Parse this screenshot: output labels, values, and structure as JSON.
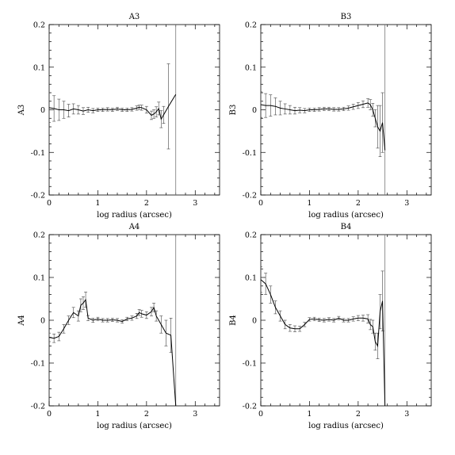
{
  "chart_data": [
    {
      "type": "line",
      "title": "A3",
      "xlabel": "log radius (arcsec)",
      "ylabel": "A3",
      "xlim": [
        0,
        3.5
      ],
      "ylim": [
        -0.2,
        0.2
      ],
      "xticks": [
        "0",
        "1",
        "2",
        "3"
      ],
      "yticks": [
        "-0.2",
        "-0.1",
        "0",
        "0.1",
        "0.2"
      ],
      "vline_x": 2.6,
      "x": [
        0.0,
        0.1,
        0.2,
        0.3,
        0.4,
        0.5,
        0.6,
        0.7,
        0.8,
        0.9,
        1.0,
        1.1,
        1.2,
        1.3,
        1.4,
        1.5,
        1.6,
        1.7,
        1.8,
        1.85,
        1.9,
        2.0,
        2.1,
        2.15,
        2.2,
        2.25,
        2.3,
        2.35,
        2.45,
        2.6
      ],
      "y": [
        0.005,
        0.003,
        0.0,
        0.0,
        -0.002,
        0.002,
        0.0,
        -0.003,
        0.0,
        -0.002,
        0.0,
        0.0,
        0.001,
        0.0,
        0.002,
        0.0,
        0.0,
        0.001,
        0.004,
        0.006,
        0.005,
        0.0,
        -0.013,
        -0.01,
        -0.005,
        0.003,
        -0.022,
        -0.012,
        0.008,
        0.036
      ],
      "err": [
        0.035,
        0.03,
        0.025,
        0.02,
        0.015,
        0.012,
        0.01,
        0.008,
        0.006,
        0.005,
        0.004,
        0.004,
        0.004,
        0.004,
        0.004,
        0.004,
        0.004,
        0.004,
        0.005,
        0.005,
        0.006,
        0.008,
        0.01,
        0.01,
        0.012,
        0.015,
        0.02,
        0.02,
        0.1,
        0.0
      ]
    },
    {
      "type": "line",
      "title": "B3",
      "xlabel": "log radius (arcsec)",
      "ylabel": "B3",
      "xlim": [
        0,
        3.5
      ],
      "ylim": [
        -0.2,
        0.2
      ],
      "xticks": [
        "0",
        "1",
        "2",
        "3"
      ],
      "yticks": [
        "-0.2",
        "-0.1",
        "0",
        "0.1",
        "0.2"
      ],
      "vline_x": 2.55,
      "x": [
        0.0,
        0.1,
        0.2,
        0.3,
        0.4,
        0.5,
        0.6,
        0.7,
        0.8,
        0.9,
        1.0,
        1.1,
        1.2,
        1.3,
        1.4,
        1.5,
        1.6,
        1.7,
        1.8,
        1.9,
        2.0,
        2.1,
        2.2,
        2.25,
        2.3,
        2.35,
        2.4,
        2.45,
        2.5,
        2.55
      ],
      "y": [
        0.012,
        0.01,
        0.01,
        0.008,
        0.004,
        0.002,
        0.0,
        -0.002,
        -0.001,
        -0.002,
        0.0,
        0.0,
        0.001,
        0.002,
        0.002,
        0.001,
        0.001,
        0.002,
        0.004,
        0.007,
        0.01,
        0.013,
        0.016,
        0.012,
        0.0,
        -0.02,
        -0.04,
        -0.05,
        -0.03,
        -0.095
      ],
      "err": [
        0.03,
        0.028,
        0.025,
        0.02,
        0.016,
        0.012,
        0.01,
        0.008,
        0.006,
        0.005,
        0.004,
        0.004,
        0.004,
        0.004,
        0.004,
        0.004,
        0.004,
        0.004,
        0.005,
        0.006,
        0.007,
        0.008,
        0.01,
        0.012,
        0.015,
        0.02,
        0.05,
        0.06,
        0.07,
        0.0
      ]
    },
    {
      "type": "line",
      "title": "A4",
      "xlabel": "log radius (arcsec)",
      "ylabel": "A4",
      "xlim": [
        0,
        3.5
      ],
      "ylim": [
        -0.2,
        0.2
      ],
      "xticks": [
        "0",
        "1",
        "2",
        "3"
      ],
      "yticks": [
        "-0.2",
        "-0.1",
        "0",
        "0.1",
        "0.2"
      ],
      "vline_x": 2.6,
      "x": [
        0.0,
        0.1,
        0.2,
        0.3,
        0.4,
        0.5,
        0.6,
        0.65,
        0.7,
        0.75,
        0.8,
        0.9,
        1.0,
        1.1,
        1.2,
        1.3,
        1.4,
        1.5,
        1.6,
        1.7,
        1.8,
        1.85,
        1.9,
        2.0,
        2.1,
        2.15,
        2.2,
        2.3,
        2.4,
        2.5,
        2.6
      ],
      "y": [
        -0.04,
        -0.042,
        -0.038,
        -0.02,
        0.0,
        0.018,
        0.01,
        0.035,
        0.04,
        0.048,
        0.005,
        0.0,
        0.003,
        0.0,
        0.0,
        0.001,
        0.0,
        -0.003,
        0.003,
        0.005,
        0.01,
        0.018,
        0.015,
        0.012,
        0.02,
        0.03,
        0.01,
        -0.01,
        -0.03,
        -0.035,
        -0.2
      ],
      "err": [
        0.01,
        0.01,
        0.01,
        0.01,
        0.01,
        0.012,
        0.012,
        0.015,
        0.015,
        0.018,
        0.006,
        0.005,
        0.004,
        0.004,
        0.004,
        0.004,
        0.004,
        0.004,
        0.004,
        0.005,
        0.006,
        0.007,
        0.008,
        0.008,
        0.01,
        0.01,
        0.012,
        0.02,
        0.03,
        0.04,
        0.0
      ]
    },
    {
      "type": "line",
      "title": "B4",
      "xlabel": "log radius (arcsec)",
      "ylabel": "B4",
      "xlim": [
        0,
        3.5
      ],
      "ylim": [
        -0.2,
        0.2
      ],
      "xticks": [
        "0",
        "1",
        "2",
        "3"
      ],
      "yticks": [
        "-0.2",
        "-0.1",
        "0",
        "0.1",
        "0.2"
      ],
      "vline_x": 2.55,
      "x": [
        0.0,
        0.1,
        0.2,
        0.3,
        0.4,
        0.5,
        0.6,
        0.7,
        0.8,
        0.9,
        1.0,
        1.1,
        1.2,
        1.3,
        1.4,
        1.5,
        1.6,
        1.7,
        1.8,
        1.9,
        2.0,
        2.1,
        2.2,
        2.25,
        2.3,
        2.35,
        2.4,
        2.45,
        2.5,
        2.55
      ],
      "y": [
        0.095,
        0.085,
        0.06,
        0.03,
        0.01,
        -0.01,
        -0.018,
        -0.02,
        -0.02,
        -0.01,
        0.002,
        0.003,
        0.001,
        0.0,
        0.002,
        0.0,
        0.005,
        0.0,
        0.0,
        0.003,
        0.005,
        0.005,
        0.003,
        -0.01,
        -0.015,
        -0.05,
        -0.06,
        0.02,
        0.045,
        -0.2
      ],
      "err": [
        0.03,
        0.025,
        0.02,
        0.015,
        0.012,
        0.01,
        0.008,
        0.007,
        0.006,
        0.005,
        0.004,
        0.004,
        0.004,
        0.004,
        0.004,
        0.004,
        0.004,
        0.004,
        0.004,
        0.005,
        0.006,
        0.007,
        0.01,
        0.012,
        0.015,
        0.02,
        0.03,
        0.04,
        0.07,
        0.0
      ]
    }
  ]
}
